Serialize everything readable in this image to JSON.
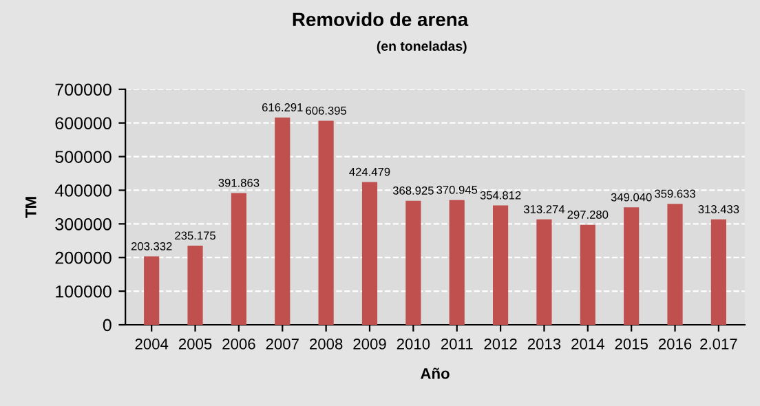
{
  "chart_data": {
    "type": "bar",
    "title": "Removido de arena",
    "subtitle": "(en toneladas)",
    "xlabel": "Año",
    "ylabel": "TM",
    "categories": [
      "2004",
      "2005",
      "2006",
      "2007",
      "2008",
      "2009",
      "2010",
      "2011",
      "2012",
      "2013",
      "2014",
      "2015",
      "2016",
      "2.017"
    ],
    "values": [
      203332,
      235175,
      391863,
      616291,
      606395,
      424479,
      368925,
      370945,
      354812,
      313274,
      297280,
      349040,
      359633,
      313433
    ],
    "value_labels": [
      "203.332",
      "235.175",
      "391.863",
      "616.291",
      "606.395",
      "424.479",
      "368.925",
      "370.945",
      "354.812",
      "313.274",
      "297.280",
      "349.040",
      "359.633",
      "313.433"
    ],
    "color": "#c0504d",
    "ylim": [
      0,
      700000
    ],
    "yticks": [
      0,
      100000,
      200000,
      300000,
      400000,
      500000,
      600000,
      700000
    ],
    "grid": "y",
    "legend": false
  }
}
